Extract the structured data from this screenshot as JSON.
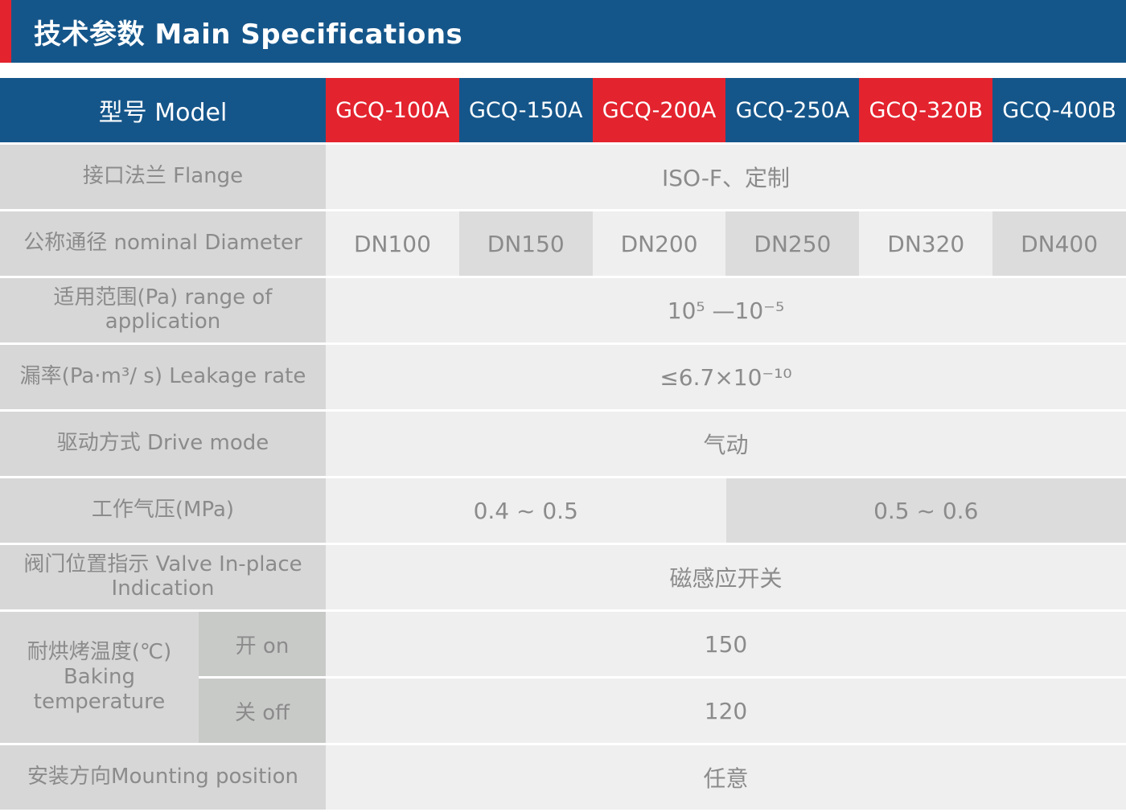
{
  "banner": {
    "title": "技术参数 Main Specifications"
  },
  "colors": {
    "brand_blue": "#15568a",
    "brand_red": "#e3232e",
    "label_gray": "#d7d7d7",
    "value_light_gray": "#efefef",
    "value_dark_gray": "#dcdcdc",
    "sub_label_gray": "#c8cac8",
    "text_gray": "#8b8b8b"
  },
  "table": {
    "model_header_label": "型号 Model",
    "models": [
      "GCQ-100A",
      "GCQ-150A",
      "GCQ-200A",
      "GCQ-250A",
      "GCQ-320B",
      "GCQ-400B"
    ],
    "rows": {
      "flange": {
        "label": "接口法兰 Flange",
        "value": "ISO-F、定制"
      },
      "diameter": {
        "label": "公称通径 nominal Diameter",
        "values": [
          "DN100",
          "DN150",
          "DN200",
          "DN250",
          "DN320",
          "DN400"
        ]
      },
      "range": {
        "label": "适用范围(Pa) range of application",
        "value": "10⁵ —10⁻⁵"
      },
      "leakage": {
        "label": "漏率(Pa·m³/ s) Leakage rate",
        "value": "≤6.7×10⁻¹⁰"
      },
      "drive": {
        "label": "驱动方式 Drive mode",
        "value": "气动"
      },
      "pressure": {
        "label": "工作气压(MPa)",
        "value_left": "0.4 ~ 0.5",
        "value_right": "0.5 ~ 0.6"
      },
      "indication": {
        "label": "阀门位置指示 Valve In-place Indication",
        "value": "磁感应开关"
      },
      "baking": {
        "label_line1": "耐烘烤温度(℃)",
        "label_line2": "Baking",
        "label_line3": "temperature",
        "on_label": "开 on",
        "on_value": "150",
        "off_label": "关 off",
        "off_value": "120"
      },
      "mounting": {
        "label": "安装方向Mounting position",
        "value": "任意"
      }
    }
  }
}
